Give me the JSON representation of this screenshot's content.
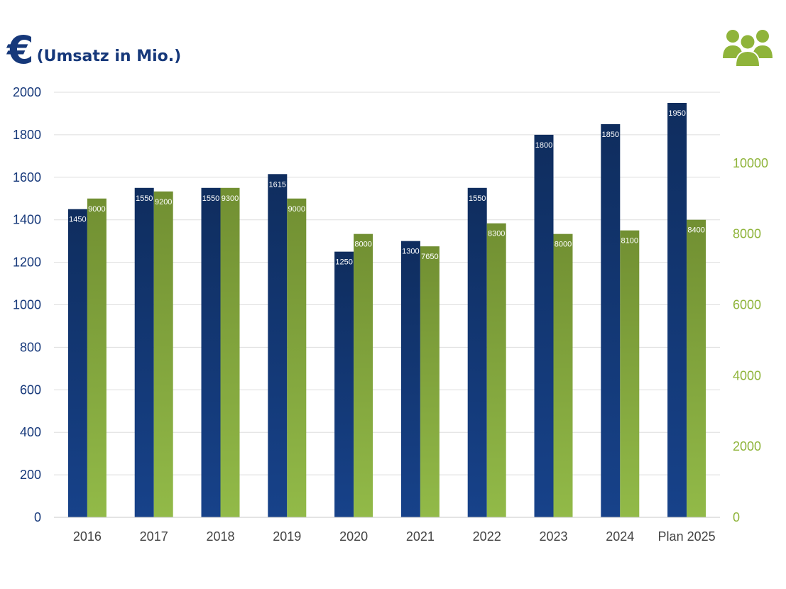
{
  "header": {
    "currency_symbol": "€",
    "unit_label": "(Umsatz in Mio.)",
    "right_icon": "people-group-icon"
  },
  "colors": {
    "revenue": "#16387a",
    "employees": "#8fb43a",
    "left_axis": "#16387a",
    "right_axis": "#8fb43a",
    "grid": "#dddddd"
  },
  "chart_data": {
    "type": "bar",
    "categories": [
      "2016",
      "2017",
      "2018",
      "2019",
      "2020",
      "2021",
      "2022",
      "2023",
      "2024",
      "Plan 2025"
    ],
    "series": [
      {
        "axis": "left",
        "values": [
          1450,
          1550,
          1550,
          1615,
          1250,
          1300,
          1550,
          1800,
          1850,
          1950
        ]
      },
      {
        "axis": "right",
        "values": [
          9000,
          9200,
          9300,
          9000,
          8000,
          7650,
          8300,
          8000,
          8100,
          8400
        ]
      }
    ],
    "y_left": {
      "range": [
        0,
        2000
      ],
      "ticks": [
        0,
        200,
        400,
        600,
        800,
        1000,
        1200,
        1400,
        1600,
        1800,
        2000
      ]
    },
    "y_right": {
      "range": [
        0,
        12000
      ],
      "ticks": [
        0,
        2000,
        4000,
        6000,
        8000,
        10000
      ]
    },
    "grid": true,
    "data_labels": true
  }
}
